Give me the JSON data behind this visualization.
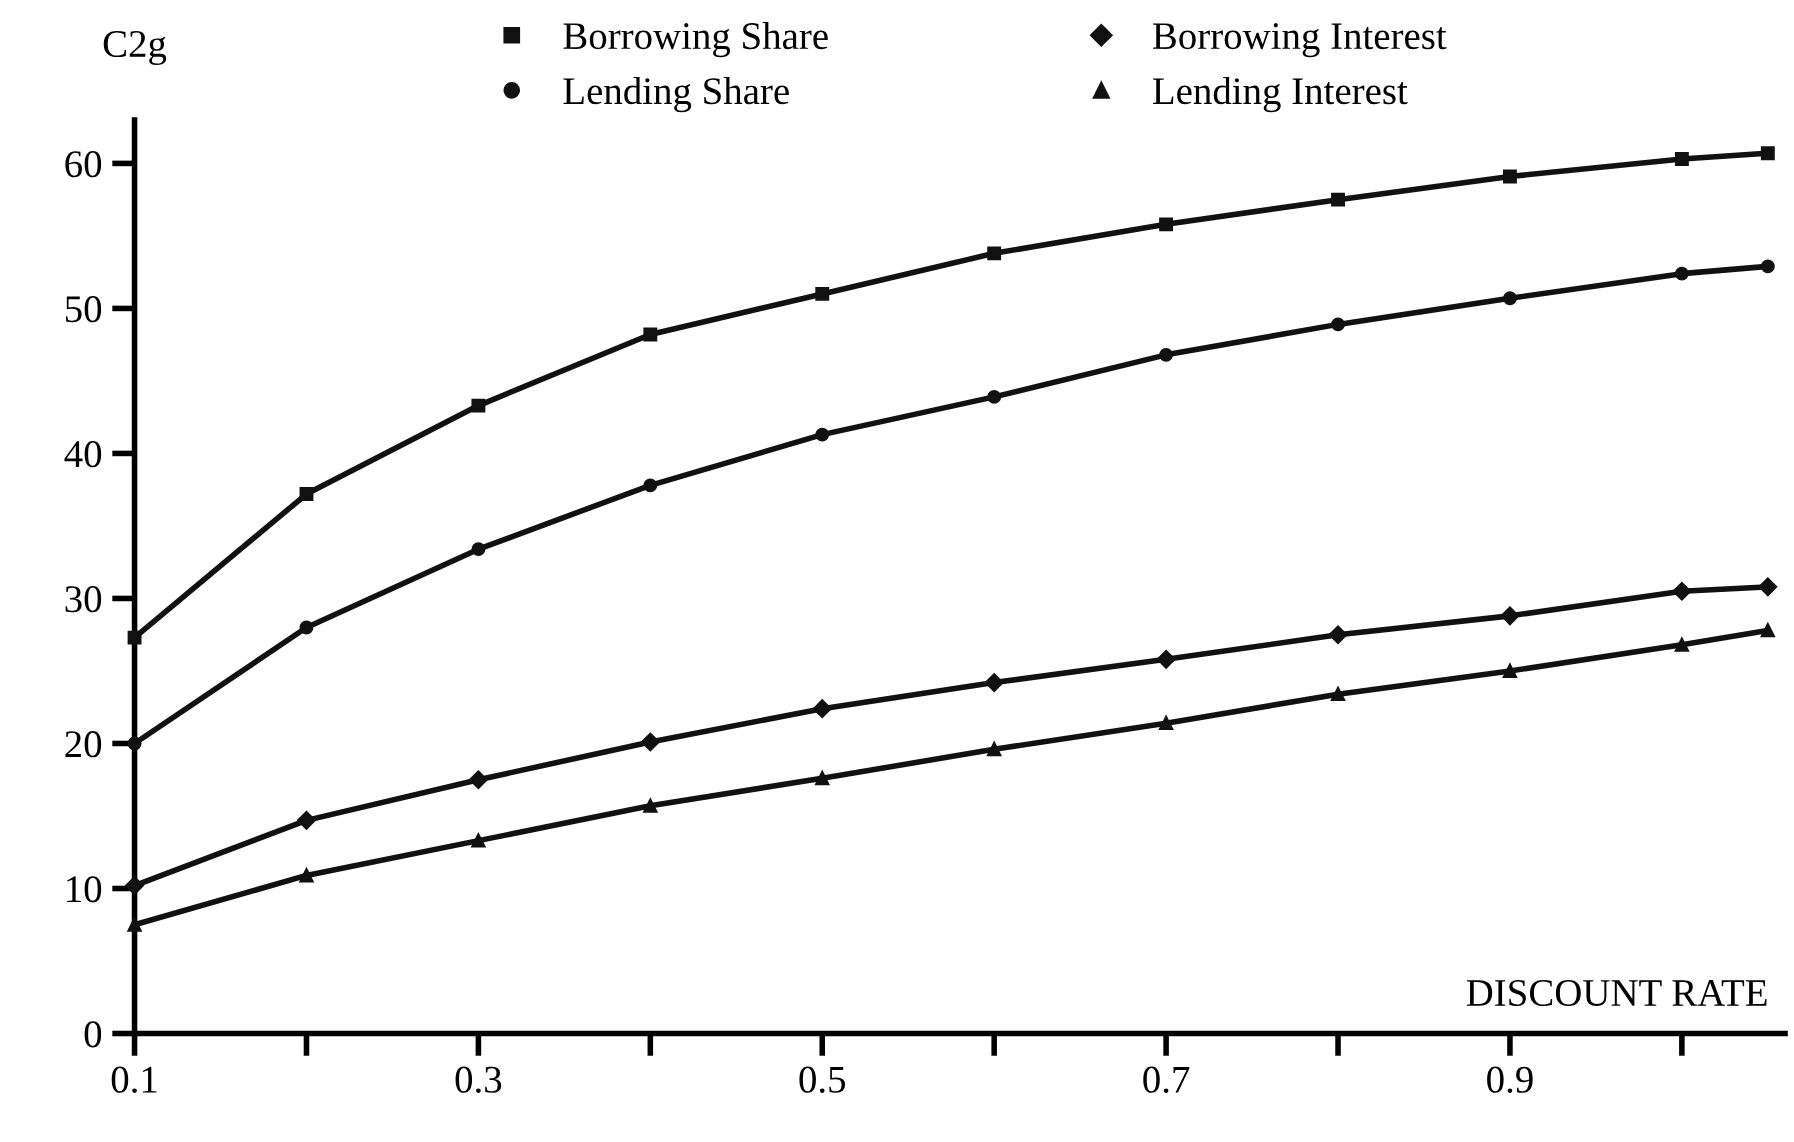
{
  "chart_data": {
    "type": "line",
    "xlabel": "DISCOUNT RATE",
    "ylabel": "C2g",
    "x": [
      0.1,
      0.2,
      0.3,
      0.4,
      0.5,
      0.6,
      0.7,
      0.8,
      0.9,
      1.0,
      1.05
    ],
    "series": [
      {
        "name": "Borrowing Share",
        "color": "#111111",
        "marker": "square",
        "values": [
          27.3,
          37.2,
          43.3,
          48.2,
          51.0,
          53.8,
          55.8,
          57.5,
          59.1,
          60.3,
          60.7
        ]
      },
      {
        "name": "Lending Share",
        "color": "#111111",
        "marker": "circle",
        "values": [
          20.0,
          28.0,
          33.4,
          37.8,
          41.3,
          43.9,
          46.8,
          48.9,
          50.7,
          52.4,
          52.9
        ]
      },
      {
        "name": "Borrowing Interest",
        "color": "#111111",
        "marker": "diamond",
        "values": [
          10.2,
          14.7,
          17.5,
          20.1,
          22.4,
          24.2,
          25.8,
          27.5,
          28.8,
          30.5,
          30.8
        ]
      },
      {
        "name": "Lending Interest",
        "color": "#111111",
        "marker": "triangle",
        "values": [
          7.5,
          10.9,
          13.3,
          15.7,
          17.6,
          19.6,
          21.4,
          23.4,
          25.0,
          26.8,
          27.8
        ]
      }
    ],
    "xlim": [
      0.1,
      1.06
    ],
    "ylim": [
      0,
      63
    ],
    "xticks": [
      0.1,
      {
        "value": 0.2,
        "label": null
      },
      0.3,
      {
        "value": 0.4,
        "label": null
      },
      0.5,
      {
        "value": 0.6,
        "label": null
      },
      0.7,
      {
        "value": 0.8,
        "label": null
      },
      0.9,
      {
        "value": 1.0,
        "label": null
      }
    ],
    "yticks": [
      0,
      10,
      20,
      30,
      40,
      50,
      60
    ],
    "grid": false,
    "legend": "top",
    "line_style": "solid"
  }
}
